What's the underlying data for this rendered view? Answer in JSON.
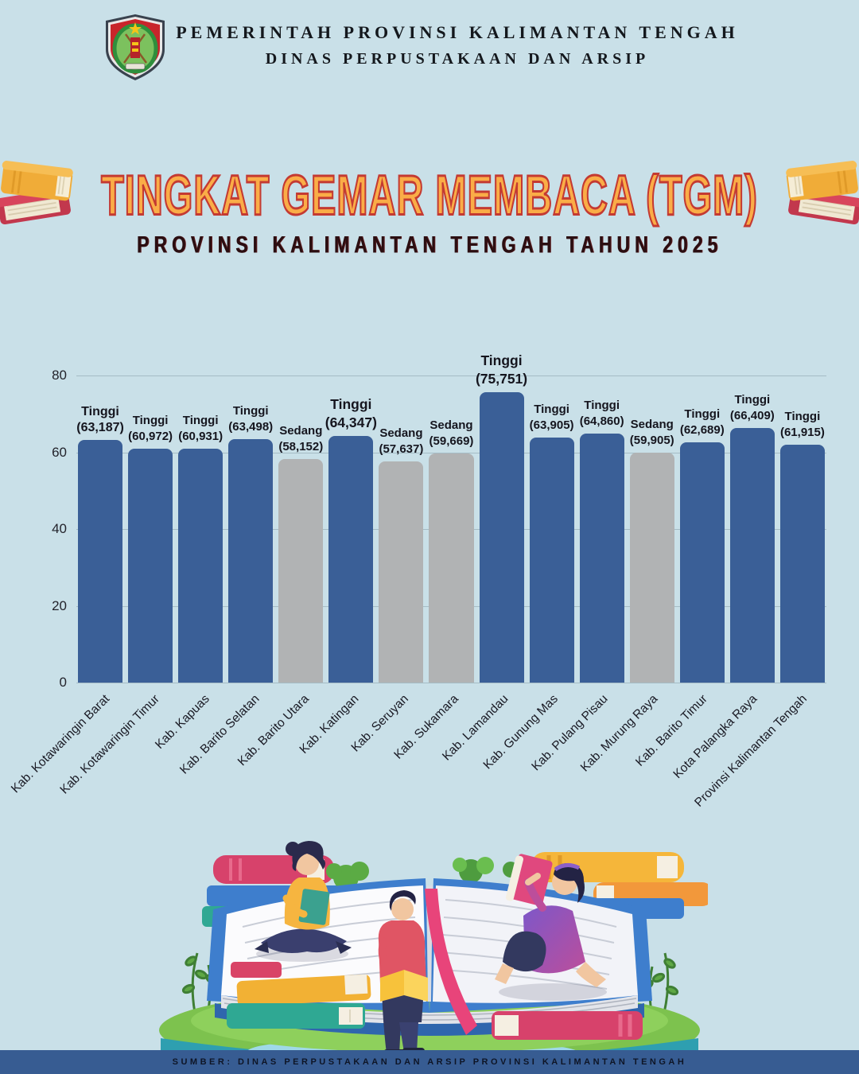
{
  "header": {
    "line1": "PEMERINTAH PROVINSI KALIMANTAN TENGAH",
    "line2": "DINAS PERPUSTAKAAN DAN ARSIP",
    "logo": "kalimantan-tengah-coat-of-arms"
  },
  "title": {
    "main": "TINGKAT GEMAR MEMBACA (TGM)",
    "subtitle": "PROVINSI KALIMANTAN TENGAH TAHUN 2025",
    "left_icon": "stacked-books-icon",
    "right_icon": "stacked-books-icon",
    "title_color": "#FAAD47",
    "title_outline_color": "#C43A32",
    "subtitle_color": "#2A0E11"
  },
  "chart_data": {
    "type": "bar",
    "title": "Tingkat Gemar Membaca (TGM) Provinsi Kalimantan Tengah Tahun 2025",
    "categories": [
      "Kab. Kotawaringin Barat",
      "Kab. Kotawaringin Timur",
      "Kab. Kapuas",
      "Kab. Barito Selatan",
      "Kab. Barito Utara",
      "Kab. Katingan",
      "Kab. Seruyan",
      "Kab. Sukamara",
      "Kab. Lamandau",
      "Kab. Gunung Mas",
      "Kab. Pulang Pisau",
      "Kab. Murung Raya",
      "Kab. Barito Timur",
      "Kota Palangka Raya",
      "Provinsi Kalimantan Tengah"
    ],
    "values": [
      63.187,
      60.972,
      60.931,
      63.498,
      58.152,
      64.347,
      57.637,
      59.669,
      75.751,
      63.905,
      64.86,
      59.905,
      62.689,
      66.409,
      61.915
    ],
    "levels": [
      "Tinggi",
      "Tinggi",
      "Tinggi",
      "Tinggi",
      "Sedang",
      "Tinggi",
      "Sedang",
      "Sedang",
      "Tinggi",
      "Tinggi",
      "Tinggi",
      "Sedang",
      "Tinggi",
      "Tinggi",
      "Tinggi"
    ],
    "value_labels": [
      "(63,187)",
      "(60,972)",
      "(60,931)",
      "(63,498)",
      "(58,152)",
      "(64,347)",
      "(57,637)",
      "(59,669)",
      "(75,751)",
      "(63,905)",
      "(64,860)",
      "(59,905)",
      "(62,689)",
      "(66,409)",
      "(61,915)"
    ],
    "xlabel": "",
    "ylabel": "",
    "ylim": [
      0,
      80
    ],
    "yticks": [
      0,
      20,
      40,
      60,
      80
    ],
    "grid": true,
    "legend_position": "none",
    "colors": {
      "tinggi": "#3A5F97",
      "sedang": "#B1B3B4"
    },
    "background_color": "#C9E0E8"
  },
  "footer": {
    "source": "SUMBER: DINAS PERPUSTAKAAN DAN ARSIP PROVINSI KALIMANTAN TENGAH",
    "bar_color": "#375C92"
  }
}
